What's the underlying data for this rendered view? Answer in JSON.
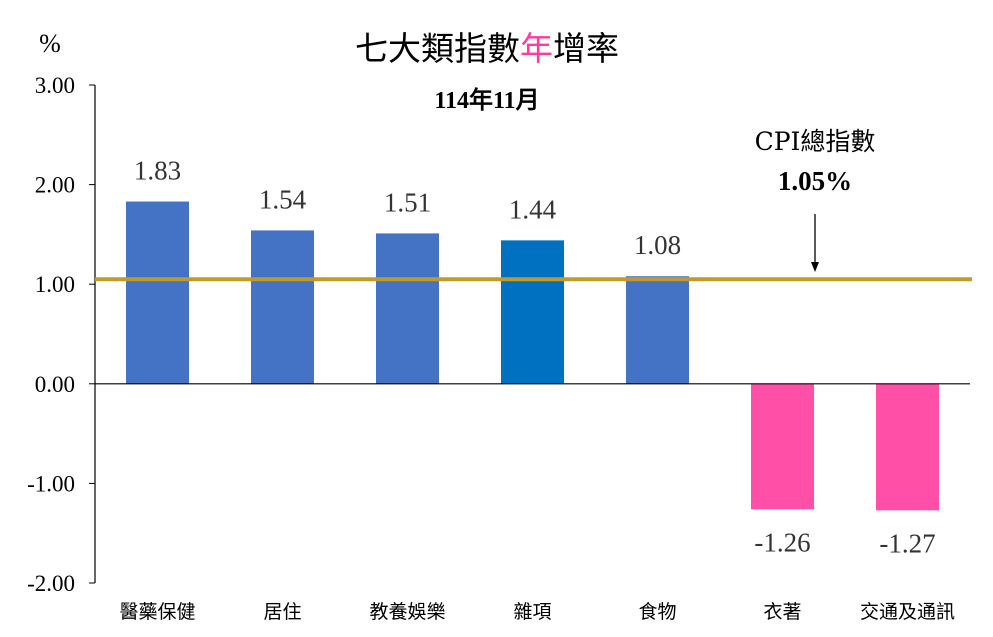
{
  "chart_data": {
    "type": "bar",
    "title_parts": [
      "七大類指數",
      "年",
      "增率"
    ],
    "subtitle": "114年11月",
    "unit_label": "%",
    "ylim": [
      -2,
      3
    ],
    "yticks": [
      3,
      2,
      1,
      0,
      -1,
      -2
    ],
    "ytick_labels": [
      "3.00",
      "2.00",
      "1.00",
      "0.00",
      "-1.00",
      "-2.00"
    ],
    "categories": [
      "醫藥保健",
      "居住",
      "教養娛樂",
      "雜項",
      "食物",
      "衣著",
      "交通及通訊"
    ],
    "values": [
      1.83,
      1.54,
      1.51,
      1.44,
      1.08,
      -1.26,
      -1.27
    ],
    "value_labels": [
      "1.83",
      "1.54",
      "1.51",
      "1.44",
      "1.08",
      "-1.26",
      "-1.27"
    ],
    "bar_colors": [
      "#4472c4",
      "#4472c4",
      "#4472c4",
      "#0070c0",
      "#4472c4",
      "#ff4fa7",
      "#ff4fa7"
    ],
    "reference_line": {
      "value": 1.05,
      "color": "#c09a2a",
      "label": "CPI總指數",
      "value_label": "1.05%"
    },
    "colors": {
      "title_highlight": "#ff3b9c",
      "axis": "#000000"
    }
  }
}
